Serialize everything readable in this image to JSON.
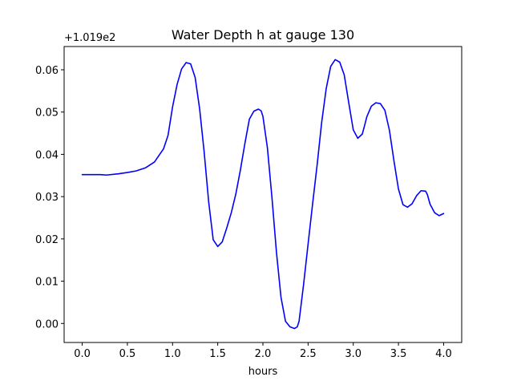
{
  "chart_data": {
    "type": "line",
    "title": "Water Depth h at gauge 130",
    "xlabel": "hours",
    "ylabel": "",
    "y_offset_label": "+1.019e2",
    "y_offset_value": 101.9,
    "xlim": [
      -0.2,
      4.2
    ],
    "ylim": [
      -0.0045,
      0.0655
    ],
    "x_ticks": [
      0.0,
      0.5,
      1.0,
      1.5,
      2.0,
      2.5,
      3.0,
      3.5,
      4.0
    ],
    "x_tick_labels": [
      "0.0",
      "0.5",
      "1.0",
      "1.5",
      "2.0",
      "2.5",
      "3.0",
      "3.5",
      "4.0"
    ],
    "y_ticks": [
      0.0,
      0.01,
      0.02,
      0.03,
      0.04,
      0.05,
      0.06
    ],
    "y_tick_labels": [
      "0.00",
      "0.01",
      "0.02",
      "0.03",
      "0.04",
      "0.05",
      "0.06"
    ],
    "grid": false,
    "series": [
      {
        "color": "#0000ff",
        "x": [
          0.0,
          0.1,
          0.2,
          0.27,
          0.4,
          0.5,
          0.6,
          0.7,
          0.8,
          0.9,
          0.95,
          1.0,
          1.05,
          1.1,
          1.15,
          1.2,
          1.25,
          1.3,
          1.35,
          1.4,
          1.45,
          1.5,
          1.55,
          1.6,
          1.65,
          1.7,
          1.75,
          1.8,
          1.85,
          1.9,
          1.95,
          1.98,
          2.0,
          2.05,
          2.1,
          2.15,
          2.2,
          2.25,
          2.3,
          2.35,
          2.38,
          2.4,
          2.45,
          2.5,
          2.55,
          2.6,
          2.65,
          2.7,
          2.75,
          2.8,
          2.85,
          2.9,
          2.95,
          3.0,
          3.05,
          3.1,
          3.13,
          3.15,
          3.2,
          3.25,
          3.3,
          3.35,
          3.4,
          3.45,
          3.5,
          3.55,
          3.6,
          3.65,
          3.7,
          3.75,
          3.8,
          3.82,
          3.85,
          3.9,
          3.95,
          4.0
        ],
        "y": [
          0.0352,
          0.0352,
          0.0352,
          0.0351,
          0.0354,
          0.0357,
          0.0361,
          0.0368,
          0.0382,
          0.0413,
          0.0445,
          0.0512,
          0.0565,
          0.0602,
          0.0617,
          0.0614,
          0.0582,
          0.0507,
          0.0405,
          0.0287,
          0.0198,
          0.0182,
          0.0193,
          0.0226,
          0.0262,
          0.0306,
          0.0362,
          0.0425,
          0.0483,
          0.0502,
          0.0507,
          0.0503,
          0.049,
          0.0415,
          0.0298,
          0.0168,
          0.0062,
          0.0005,
          -0.0008,
          -0.0012,
          -0.0008,
          0.0005,
          0.0092,
          0.0188,
          0.0283,
          0.0375,
          0.0475,
          0.0555,
          0.0608,
          0.0624,
          0.0618,
          0.0588,
          0.0522,
          0.0458,
          0.0438,
          0.0448,
          0.0472,
          0.0489,
          0.0514,
          0.0522,
          0.052,
          0.0504,
          0.0457,
          0.0385,
          0.0318,
          0.0281,
          0.0275,
          0.0283,
          0.0302,
          0.0314,
          0.0313,
          0.0305,
          0.0282,
          0.0262,
          0.0255,
          0.026
        ]
      }
    ]
  }
}
